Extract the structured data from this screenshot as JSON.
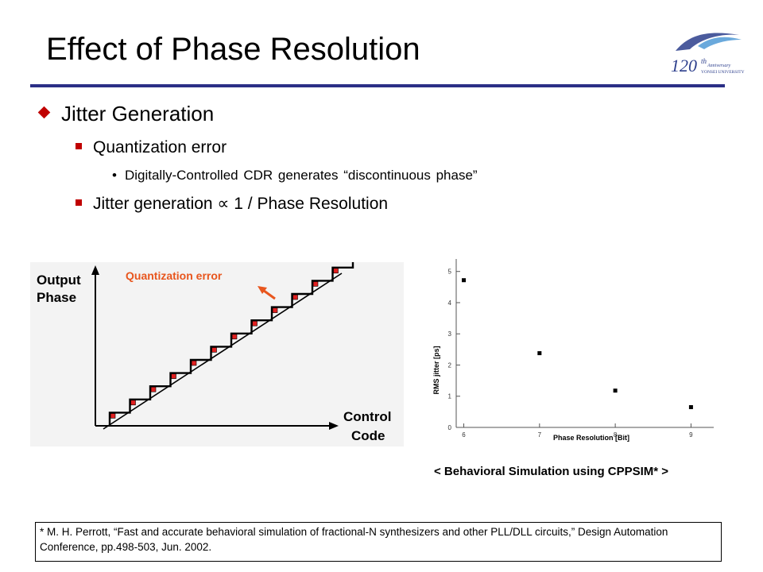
{
  "title": "Effect of Phase Resolution",
  "logo": {
    "text_main": "120",
    "text_sup": "th",
    "text_small1": "Anniversary",
    "text_small2": "YONSEI UNIVERSITY"
  },
  "bullets": {
    "level1": "Jitter Generation",
    "level2a": "Quantization error",
    "level3": "Digitally-Controlled CDR generates “discontinuous phase”",
    "level2b": "Jitter generation ∝ 1 / Phase Resolution"
  },
  "left_figure": {
    "y_label_line1": "Output",
    "y_label_line2": "Phase",
    "x_label_line1": "Control",
    "x_label_line2": "Code",
    "annotation": "Quantization error"
  },
  "chart_data": {
    "type": "scatter",
    "xlabel": "Phase Resolution [Bit]",
    "ylabel": "RMS jitter [ps]",
    "x_ticks": [
      "6",
      "7",
      "8",
      "9"
    ],
    "y_ticks": [
      "0",
      "1",
      "2",
      "3",
      "4",
      "5"
    ],
    "xlim": [
      5.9,
      9.3
    ],
    "ylim": [
      0,
      5.4
    ],
    "series": [
      {
        "x": [
          6,
          7,
          8,
          9
        ],
        "y": [
          4.72,
          2.38,
          1.18,
          0.65
        ]
      }
    ]
  },
  "caption": "< Behavioral Simulation using CPPSIM* >",
  "footnote": "* M. H. Perrott, “Fast and accurate behavioral simulation of fractional-N synthesizers and other PLL/DLL circuits,” Design Automation Conference, pp.498-503, Jun. 2002.",
  "colors": {
    "accent": "#c00000",
    "rule": "#2b2f86",
    "annotation": "#e8561e",
    "logo": "#2c3e8c"
  }
}
